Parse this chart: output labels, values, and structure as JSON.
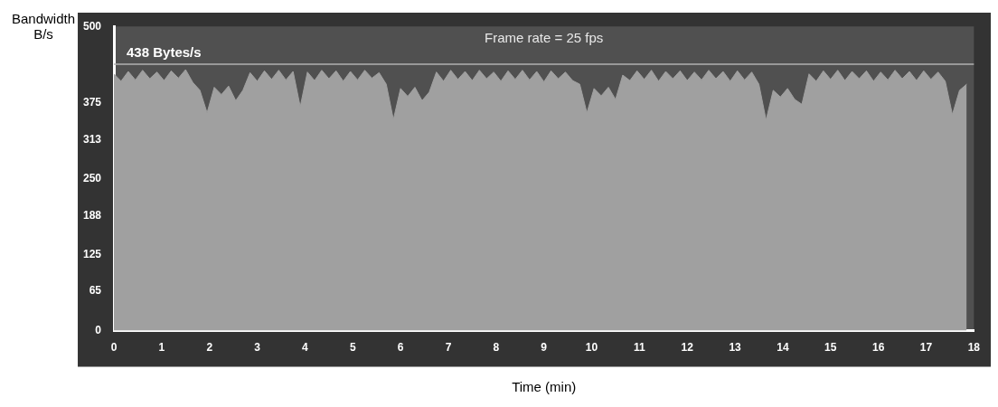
{
  "chart_data": {
    "type": "area",
    "title": "Frame rate = 25 fps",
    "xlabel": "Time (min)",
    "ylabel": "Bandwidth B/s",
    "x": [
      0,
      0.15,
      0.3,
      0.45,
      0.6,
      0.75,
      0.9,
      1.05,
      1.2,
      1.35,
      1.5,
      1.65,
      1.8,
      1.95,
      2.1,
      2.25,
      2.4,
      2.55,
      2.7,
      2.85,
      3,
      3.15,
      3.3,
      3.45,
      3.6,
      3.75,
      3.9,
      4.05,
      4.2,
      4.35,
      4.5,
      4.65,
      4.8,
      4.95,
      5.1,
      5.25,
      5.4,
      5.55,
      5.7,
      5.85,
      6,
      6.15,
      6.3,
      6.45,
      6.6,
      6.75,
      6.9,
      7.05,
      7.2,
      7.35,
      7.5,
      7.65,
      7.8,
      7.95,
      8.1,
      8.25,
      8.4,
      8.55,
      8.7,
      8.85,
      9,
      9.15,
      9.3,
      9.45,
      9.6,
      9.75,
      9.9,
      10.05,
      10.2,
      10.35,
      10.5,
      10.65,
      10.8,
      10.95,
      11.1,
      11.25,
      11.4,
      11.55,
      11.7,
      11.85,
      12,
      12.15,
      12.3,
      12.45,
      12.6,
      12.75,
      12.9,
      13.05,
      13.2,
      13.35,
      13.5,
      13.65,
      13.8,
      13.95,
      14.1,
      14.25,
      14.4,
      14.55,
      14.7,
      14.85,
      15,
      15.15,
      15.3,
      15.45,
      15.6,
      15.75,
      15.9,
      16.05,
      16.2,
      16.35,
      16.5,
      16.65,
      16.8,
      16.95,
      17.1,
      17.25,
      17.4,
      17.55,
      17.7,
      17.85
    ],
    "series": [
      {
        "color": "#a0a0a0",
        "values": [
          422,
          410,
          426,
          412,
          428,
          414,
          425,
          411,
          427,
          415,
          429,
          408,
          395,
          358,
          400,
          388,
          402,
          378,
          395,
          424,
          410,
          427,
          413,
          428,
          412,
          426,
          368,
          425,
          411,
          428,
          414,
          427,
          410,
          426,
          412,
          428,
          415,
          424,
          405,
          347,
          398,
          385,
          400,
          378,
          392,
          425,
          410,
          428,
          413,
          426,
          411,
          428,
          414,
          425,
          410,
          427,
          413,
          428,
          412,
          426,
          409,
          427,
          414,
          425,
          411,
          405,
          358,
          398,
          386,
          400,
          380,
          420,
          411,
          427,
          413,
          428,
          410,
          426,
          414,
          427,
          411,
          425,
          412,
          428,
          414,
          426,
          410,
          427,
          412,
          425,
          405,
          346,
          395,
          384,
          398,
          380,
          372,
          422,
          410,
          427,
          413,
          428,
          411,
          426,
          414,
          427,
          410,
          425,
          412,
          428,
          414,
          426,
          411,
          427,
          413,
          425,
          410,
          355,
          395,
          405
        ]
      }
    ],
    "xlim": [
      0,
      18
    ],
    "xticks": [
      0,
      1,
      2,
      3,
      4,
      5,
      6,
      7,
      8,
      9,
      10,
      11,
      12,
      13,
      14,
      15,
      16,
      17,
      18
    ],
    "ylim": [
      0,
      500
    ],
    "yticks": [
      0,
      65,
      125,
      188,
      250,
      313,
      375,
      500
    ],
    "ref_lines": [
      {
        "axis": "y",
        "value": 438,
        "label": "438 Bytes/s",
        "color": "#b0b0b0"
      }
    ],
    "grid": false,
    "legend": false
  }
}
